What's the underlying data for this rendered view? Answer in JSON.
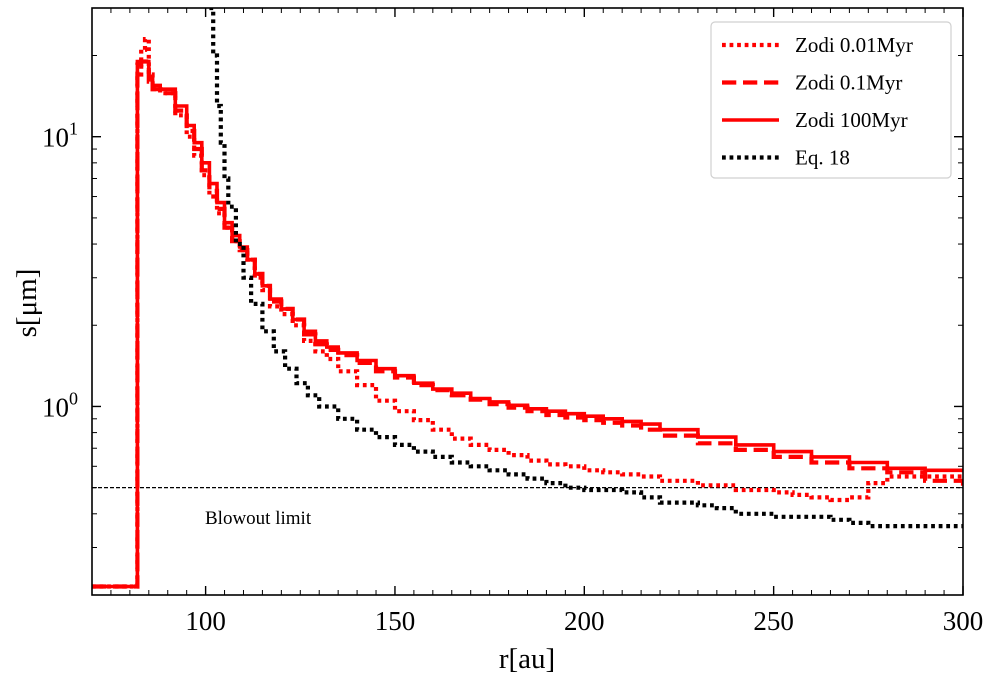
{
  "chart_data": {
    "type": "line",
    "xlabel": "r[au]",
    "ylabel": "s[μm]",
    "xlim": [
      70,
      300
    ],
    "ylim": [
      0.2,
      30
    ],
    "yscale": "log",
    "x_ticks": [
      100,
      150,
      200,
      250,
      300
    ],
    "x_tick_labels": [
      "100",
      "150",
      "200",
      "250",
      "300"
    ],
    "y_tick_labels": [
      {
        "value": 1,
        "base": "10",
        "exp": "0"
      },
      {
        "value": 10,
        "base": "10",
        "exp": "1"
      }
    ],
    "legend_position": "top-right",
    "hline": {
      "y": 0.5,
      "label": "Blowout limit",
      "color": "#000000",
      "style": "dashed"
    },
    "series": [
      {
        "name": "Zodi 0.01Myr",
        "color": "#ff0000",
        "style": "dotted",
        "x": [
          70,
          81,
          82,
          83,
          84,
          85,
          86,
          88,
          92,
          95,
          97,
          99,
          101,
          103,
          105,
          107,
          109,
          111,
          113,
          115,
          117,
          120,
          123,
          126,
          129,
          132,
          135,
          140,
          145,
          150,
          155,
          160,
          165,
          170,
          175,
          180,
          185,
          190,
          195,
          200,
          205,
          210,
          215,
          220,
          230,
          240,
          250,
          255,
          260,
          265,
          270,
          275,
          280,
          290,
          300
        ],
        "y": [
          0.215,
          0.215,
          17,
          21,
          23,
          17,
          15,
          14.5,
          12,
          10,
          8.5,
          7.2,
          6.0,
          5.2,
          4.6,
          4.1,
          3.8,
          3.5,
          3.0,
          2.7,
          2.35,
          2.2,
          2.0,
          1.75,
          1.6,
          1.5,
          1.35,
          1.2,
          1.05,
          0.96,
          0.89,
          0.82,
          0.76,
          0.72,
          0.69,
          0.66,
          0.63,
          0.61,
          0.6,
          0.58,
          0.57,
          0.56,
          0.55,
          0.53,
          0.51,
          0.49,
          0.48,
          0.47,
          0.46,
          0.45,
          0.46,
          0.52,
          0.55,
          0.55,
          0.54
        ]
      },
      {
        "name": "Zodi 0.1Myr",
        "color": "#ff0000",
        "style": "dashed",
        "x": [
          70,
          81,
          82,
          83,
          84,
          85,
          86,
          88,
          92,
          95,
          97,
          99,
          101,
          103,
          105,
          107,
          109,
          111,
          113,
          115,
          117,
          120,
          123,
          126,
          129,
          132,
          135,
          140,
          145,
          150,
          155,
          160,
          165,
          170,
          175,
          180,
          185,
          190,
          195,
          200,
          205,
          210,
          215,
          220,
          230,
          240,
          250,
          260,
          270,
          280,
          290,
          300
        ],
        "y": [
          0.215,
          0.215,
          18.5,
          19,
          19,
          16,
          15,
          14.5,
          12.5,
          10.5,
          9,
          7.5,
          6.3,
          5.4,
          4.6,
          4.1,
          3.8,
          3.5,
          3.1,
          2.8,
          2.45,
          2.3,
          2.1,
          1.85,
          1.7,
          1.62,
          1.55,
          1.45,
          1.35,
          1.28,
          1.2,
          1.15,
          1.1,
          1.06,
          1.02,
          0.99,
          0.96,
          0.93,
          0.91,
          0.89,
          0.87,
          0.85,
          0.82,
          0.78,
          0.73,
          0.69,
          0.65,
          0.62,
          0.59,
          0.57,
          0.53,
          0.5
        ]
      },
      {
        "name": "Zodi 100Myr",
        "color": "#ff0000",
        "style": "solid",
        "x": [
          70,
          81,
          82,
          83,
          84,
          85,
          86,
          88,
          92,
          95,
          97,
          99,
          101,
          103,
          105,
          107,
          109,
          111,
          113,
          115,
          117,
          120,
          123,
          126,
          129,
          132,
          135,
          140,
          145,
          150,
          155,
          160,
          165,
          170,
          175,
          180,
          185,
          190,
          195,
          200,
          205,
          210,
          215,
          220,
          230,
          240,
          250,
          260,
          270,
          280,
          290,
          300
        ],
        "y": [
          0.215,
          0.215,
          19,
          19,
          19,
          16.5,
          15.5,
          15,
          13,
          11,
          9.5,
          8,
          6.7,
          5.7,
          4.8,
          4.3,
          3.9,
          3.5,
          3.1,
          2.8,
          2.5,
          2.3,
          2.1,
          1.9,
          1.75,
          1.66,
          1.58,
          1.48,
          1.38,
          1.3,
          1.22,
          1.16,
          1.12,
          1.07,
          1.04,
          1.01,
          0.98,
          0.96,
          0.94,
          0.92,
          0.9,
          0.88,
          0.86,
          0.82,
          0.77,
          0.72,
          0.68,
          0.65,
          0.62,
          0.59,
          0.58,
          0.57
        ]
      },
      {
        "name": "Eq. 18",
        "color": "#000000",
        "style": "dotted",
        "x": [
          101,
          102,
          103,
          104,
          105,
          106,
          108,
          110,
          112,
          115,
          118,
          121,
          124,
          127,
          130,
          135,
          140,
          145,
          150,
          155,
          160,
          165,
          170,
          175,
          180,
          185,
          190,
          195,
          200,
          210,
          215,
          220,
          230,
          235,
          240,
          250,
          260,
          265,
          270,
          275,
          280,
          290,
          300
        ],
        "y": [
          30,
          20,
          13,
          9.5,
          7.0,
          5.5,
          4.0,
          3.0,
          2.4,
          1.9,
          1.6,
          1.38,
          1.22,
          1.1,
          1.0,
          0.9,
          0.82,
          0.77,
          0.72,
          0.68,
          0.65,
          0.62,
          0.6,
          0.58,
          0.56,
          0.54,
          0.52,
          0.5,
          0.49,
          0.48,
          0.46,
          0.44,
          0.43,
          0.42,
          0.4,
          0.39,
          0.39,
          0.38,
          0.37,
          0.36,
          0.36,
          0.36,
          0.36
        ]
      }
    ]
  }
}
